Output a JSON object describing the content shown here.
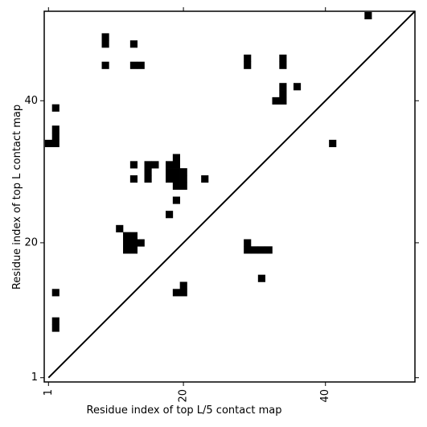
{
  "chart_data": {
    "type": "contact_map",
    "xlabel": "Residue index of top L/5 contact map",
    "ylabel": "Residue index of top L contact map",
    "xlim": [
      0.4,
      52.6
    ],
    "ylim": [
      0.4,
      52.6
    ],
    "xticks": [
      1,
      20,
      40
    ],
    "yticks": [
      1,
      20,
      40
    ],
    "color": "#000000",
    "diagonal": true,
    "x": [
      46,
      9,
      9,
      13,
      9,
      13,
      14,
      29,
      29,
      34,
      34,
      34,
      34,
      33,
      34,
      36,
      41,
      2,
      2,
      2,
      1,
      2,
      13,
      13,
      15,
      15,
      15,
      16,
      19,
      18,
      18,
      18,
      19,
      19,
      19,
      19,
      20,
      20,
      20,
      23,
      19,
      18,
      11,
      12,
      12,
      12,
      13,
      13,
      13,
      14,
      29,
      29,
      30,
      31,
      32,
      31,
      2,
      2,
      2,
      20,
      19,
      20
    ],
    "y": [
      52,
      49,
      48,
      48,
      45,
      45,
      45,
      46,
      45,
      46,
      45,
      42,
      41,
      40,
      40,
      42,
      34,
      39,
      36,
      35,
      34,
      34,
      31,
      29,
      31,
      30,
      29,
      31,
      32,
      31,
      30,
      29,
      31,
      30,
      29,
      28,
      30,
      29,
      28,
      29,
      26,
      24,
      22,
      21,
      20,
      19,
      21,
      20,
      19,
      20,
      20,
      19,
      19,
      19,
      19,
      15,
      13,
      9,
      8,
      14,
      13,
      13
    ]
  }
}
